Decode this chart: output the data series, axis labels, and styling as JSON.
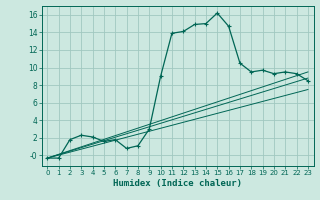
{
  "xlabel": "Humidex (Indice chaleur)",
  "xlim": [
    -0.5,
    23.5
  ],
  "ylim": [
    -1.2,
    17.0
  ],
  "xticks": [
    0,
    1,
    2,
    3,
    4,
    5,
    6,
    7,
    8,
    9,
    10,
    11,
    12,
    13,
    14,
    15,
    16,
    17,
    18,
    19,
    20,
    21,
    22,
    23
  ],
  "yticks": [
    0,
    2,
    4,
    6,
    8,
    10,
    12,
    14,
    16
  ],
  "ytick_labels": [
    "-0",
    "2",
    "4",
    "6",
    "8",
    "10",
    "12",
    "14",
    "16"
  ],
  "background_color": "#cce8e0",
  "grid_color": "#a0c8c0",
  "line_color": "#006655",
  "curve_data": [
    [
      0,
      -0.3
    ],
    [
      1,
      -0.3
    ],
    [
      2,
      1.8
    ],
    [
      3,
      2.3
    ],
    [
      4,
      2.1
    ],
    [
      5,
      1.6
    ],
    [
      6,
      1.8
    ],
    [
      7,
      0.8
    ],
    [
      8,
      1.1
    ],
    [
      9,
      3.0
    ],
    [
      10,
      9.0
    ],
    [
      11,
      13.9
    ],
    [
      12,
      14.1
    ],
    [
      13,
      14.9
    ],
    [
      14,
      15.0
    ],
    [
      15,
      16.2
    ],
    [
      16,
      14.7
    ],
    [
      17,
      10.5
    ],
    [
      18,
      9.5
    ],
    [
      19,
      9.7
    ],
    [
      20,
      9.3
    ],
    [
      21,
      9.5
    ],
    [
      22,
      9.3
    ],
    [
      23,
      8.5
    ]
  ],
  "linear_lines": [
    {
      "x": [
        0,
        23
      ],
      "y": [
        -0.3,
        8.8
      ]
    },
    {
      "x": [
        0,
        23
      ],
      "y": [
        -0.3,
        7.5
      ]
    },
    {
      "x": [
        0,
        23
      ],
      "y": [
        -0.3,
        9.5
      ]
    }
  ]
}
